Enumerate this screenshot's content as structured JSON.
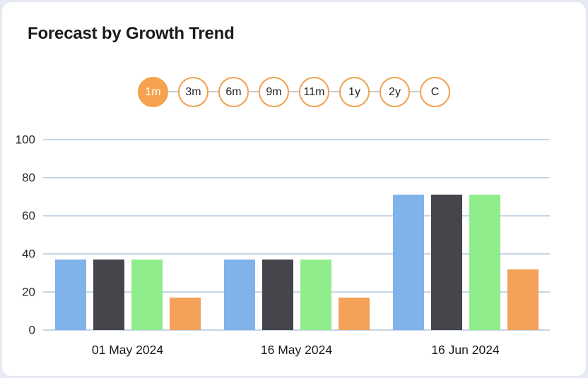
{
  "card": {
    "title": "Forecast by Growth Trend"
  },
  "period_selector": {
    "options": [
      {
        "label": "1m",
        "active": true
      },
      {
        "label": "3m",
        "active": false
      },
      {
        "label": "6m",
        "active": false
      },
      {
        "label": "9m",
        "active": false
      },
      {
        "label": "11m",
        "active": false
      },
      {
        "label": "1y",
        "active": false
      },
      {
        "label": "2y",
        "active": false
      },
      {
        "label": "C",
        "active": false
      }
    ]
  },
  "chart_data": {
    "type": "bar",
    "title": "Forecast by Growth Trend",
    "categories": [
      "01 May 2024",
      "16 May 2024",
      "16 Jun 2024"
    ],
    "series": [
      {
        "name": "series-blue",
        "color": "#7FB3EA",
        "values": [
          37,
          37,
          71
        ]
      },
      {
        "name": "series-dark",
        "color": "#45454B",
        "values": [
          37,
          37,
          71
        ]
      },
      {
        "name": "series-green",
        "color": "#90ED8B",
        "values": [
          37,
          37,
          71
        ]
      },
      {
        "name": "series-orange",
        "color": "#F4A159",
        "values": [
          17,
          17,
          32
        ]
      }
    ],
    "xlabel": "",
    "ylabel": "",
    "ylim": [
      0,
      100
    ],
    "yticks": [
      0,
      20,
      40,
      60,
      80,
      100
    ],
    "grid": true,
    "legend": "none"
  },
  "colors": {
    "accent_orange": "#F6A24E",
    "gridline": "#C7D5E7",
    "card_background": "#FFFFFF",
    "page_background": "#E7EAF3",
    "text": "#1B1B1D"
  }
}
